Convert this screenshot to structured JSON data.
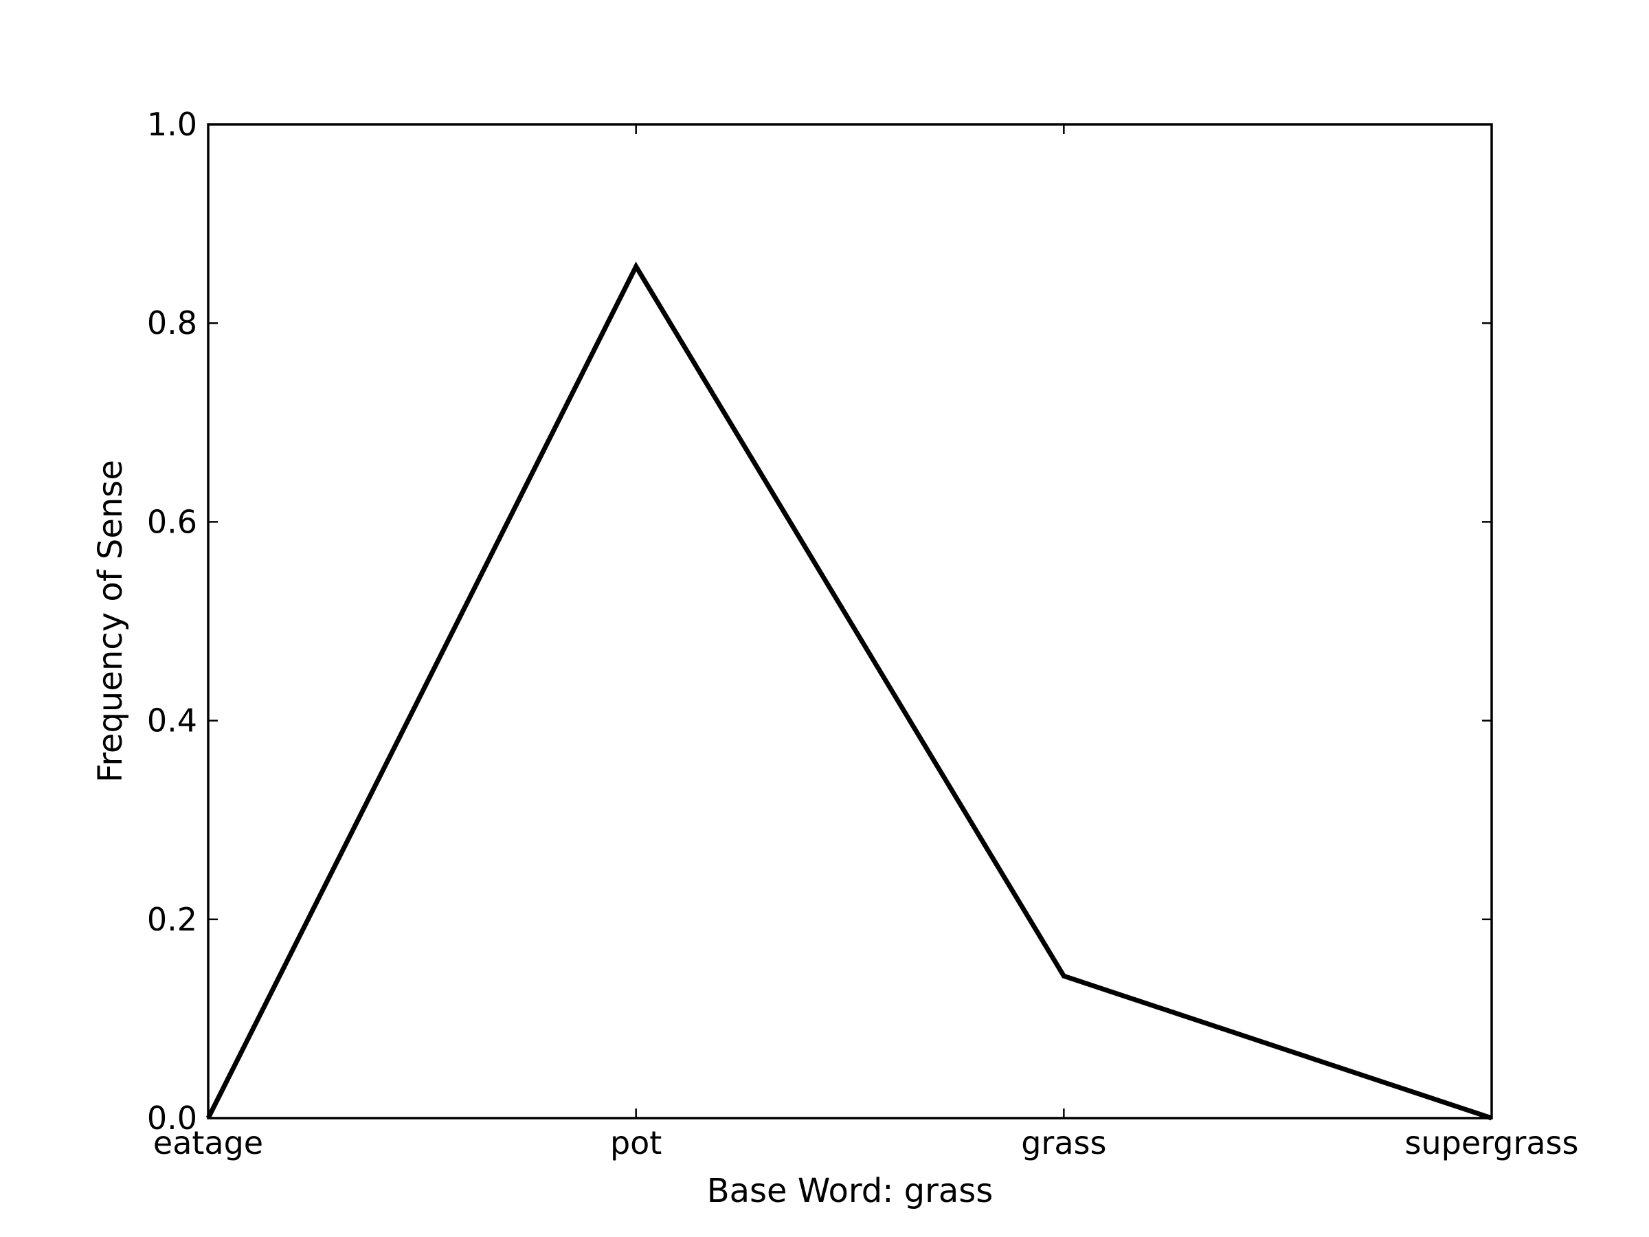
{
  "chart_data": {
    "type": "line",
    "title": "",
    "xlabel": "Base Word: grass",
    "ylabel": "Frequency of Sense",
    "categories": [
      "eatage",
      "pot",
      "grass",
      "supergrass"
    ],
    "series": [
      {
        "values": [
          0.0,
          0.857,
          0.143,
          0.0
        ]
      }
    ],
    "ylim": [
      0.0,
      1.0
    ],
    "yticks": [
      "0.0",
      "0.2",
      "0.4",
      "0.6",
      "0.8",
      "1.0"
    ],
    "grid": false,
    "legend": "none",
    "colors": {
      "line": "#000000",
      "axes": "#000000",
      "background": "#ffffff"
    }
  }
}
